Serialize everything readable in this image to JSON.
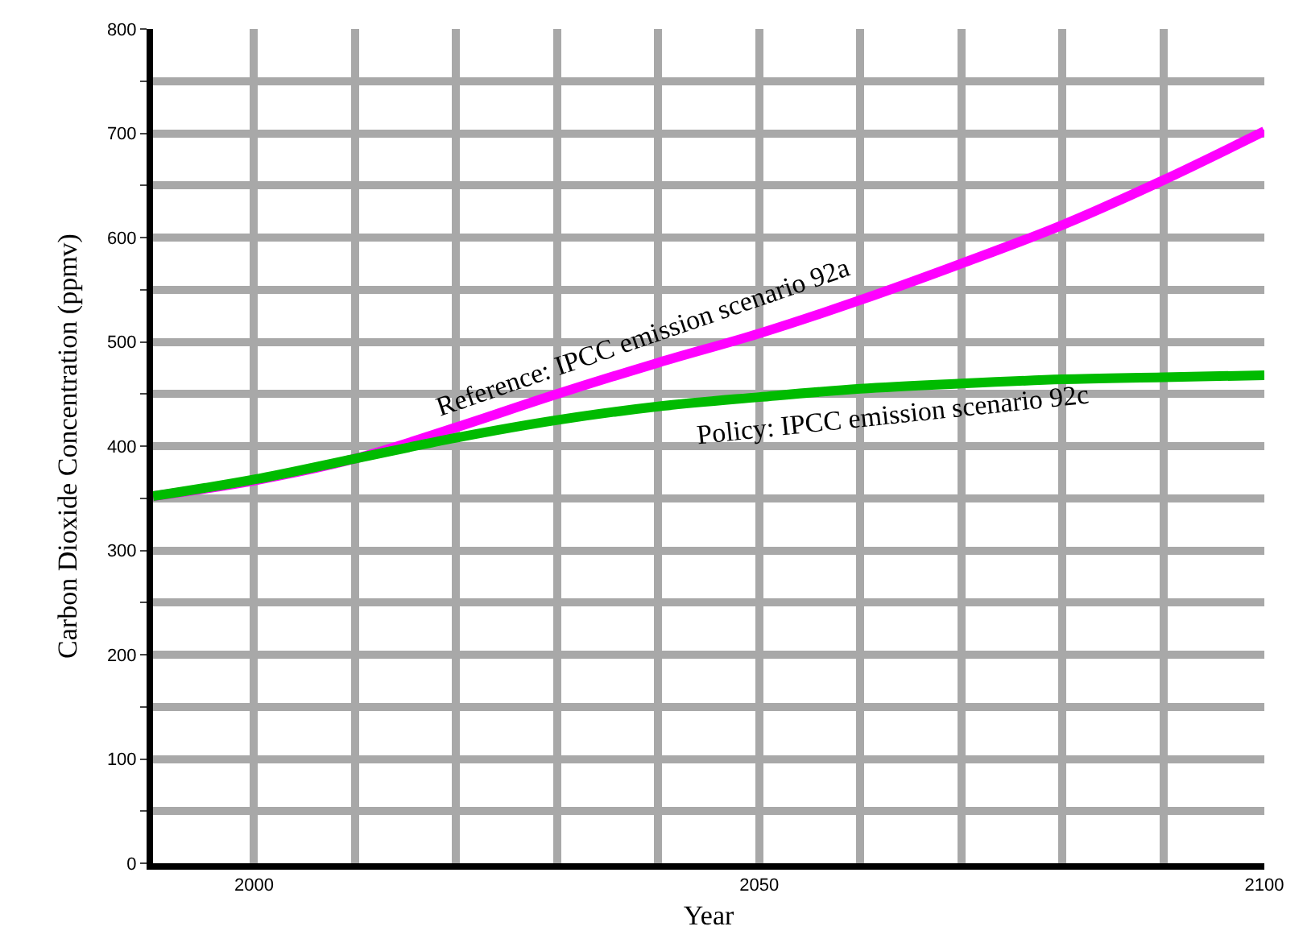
{
  "chart_data": {
    "type": "line",
    "xlabel": "Year",
    "ylabel": "Carbon Dioxide Concentration (ppmv)",
    "x": [
      1990,
      2000,
      2010,
      2020,
      2030,
      2040,
      2050,
      2060,
      2070,
      2080,
      2090,
      2100
    ],
    "series": [
      {
        "name": "Reference: IPCC emission scenario 92a",
        "color": "#ff00ff",
        "values": [
          352,
          367,
          388,
          418,
          450,
          480,
          508,
          540,
          575,
          612,
          655,
          702
        ]
      },
      {
        "name": "Policy: IPCC emission scenario 92c",
        "color": "#00bb00",
        "values": [
          352,
          368,
          388,
          408,
          425,
          438,
          447,
          455,
          460,
          464,
          466,
          468
        ]
      }
    ],
    "xlim": [
      1990,
      2100
    ],
    "xticks": [
      {
        "value": 1990,
        "label": null
      },
      2000,
      {
        "value": 2010,
        "label": null
      },
      {
        "value": 2020,
        "label": null
      },
      {
        "value": 2030,
        "label": null
      },
      {
        "value": 2040,
        "label": null
      },
      2050,
      {
        "value": 2060,
        "label": null
      },
      {
        "value": 2070,
        "label": null
      },
      {
        "value": 2080,
        "label": null
      },
      {
        "value": 2090,
        "label": null
      },
      2100
    ],
    "ylim": [
      0,
      800
    ],
    "yticks": [
      0,
      {
        "value": 50,
        "label": null
      },
      100,
      {
        "value": 150,
        "label": null
      },
      200,
      {
        "value": 250,
        "label": null
      },
      300,
      {
        "value": 350,
        "label": null
      },
      400,
      {
        "value": 450,
        "label": null
      },
      500,
      {
        "value": 550,
        "label": null
      },
      600,
      {
        "value": 650,
        "label": null
      },
      700,
      {
        "value": 750,
        "label": null
      },
      800
    ],
    "grid": true,
    "legend": false,
    "marker": "none",
    "line_style": "solid"
  }
}
